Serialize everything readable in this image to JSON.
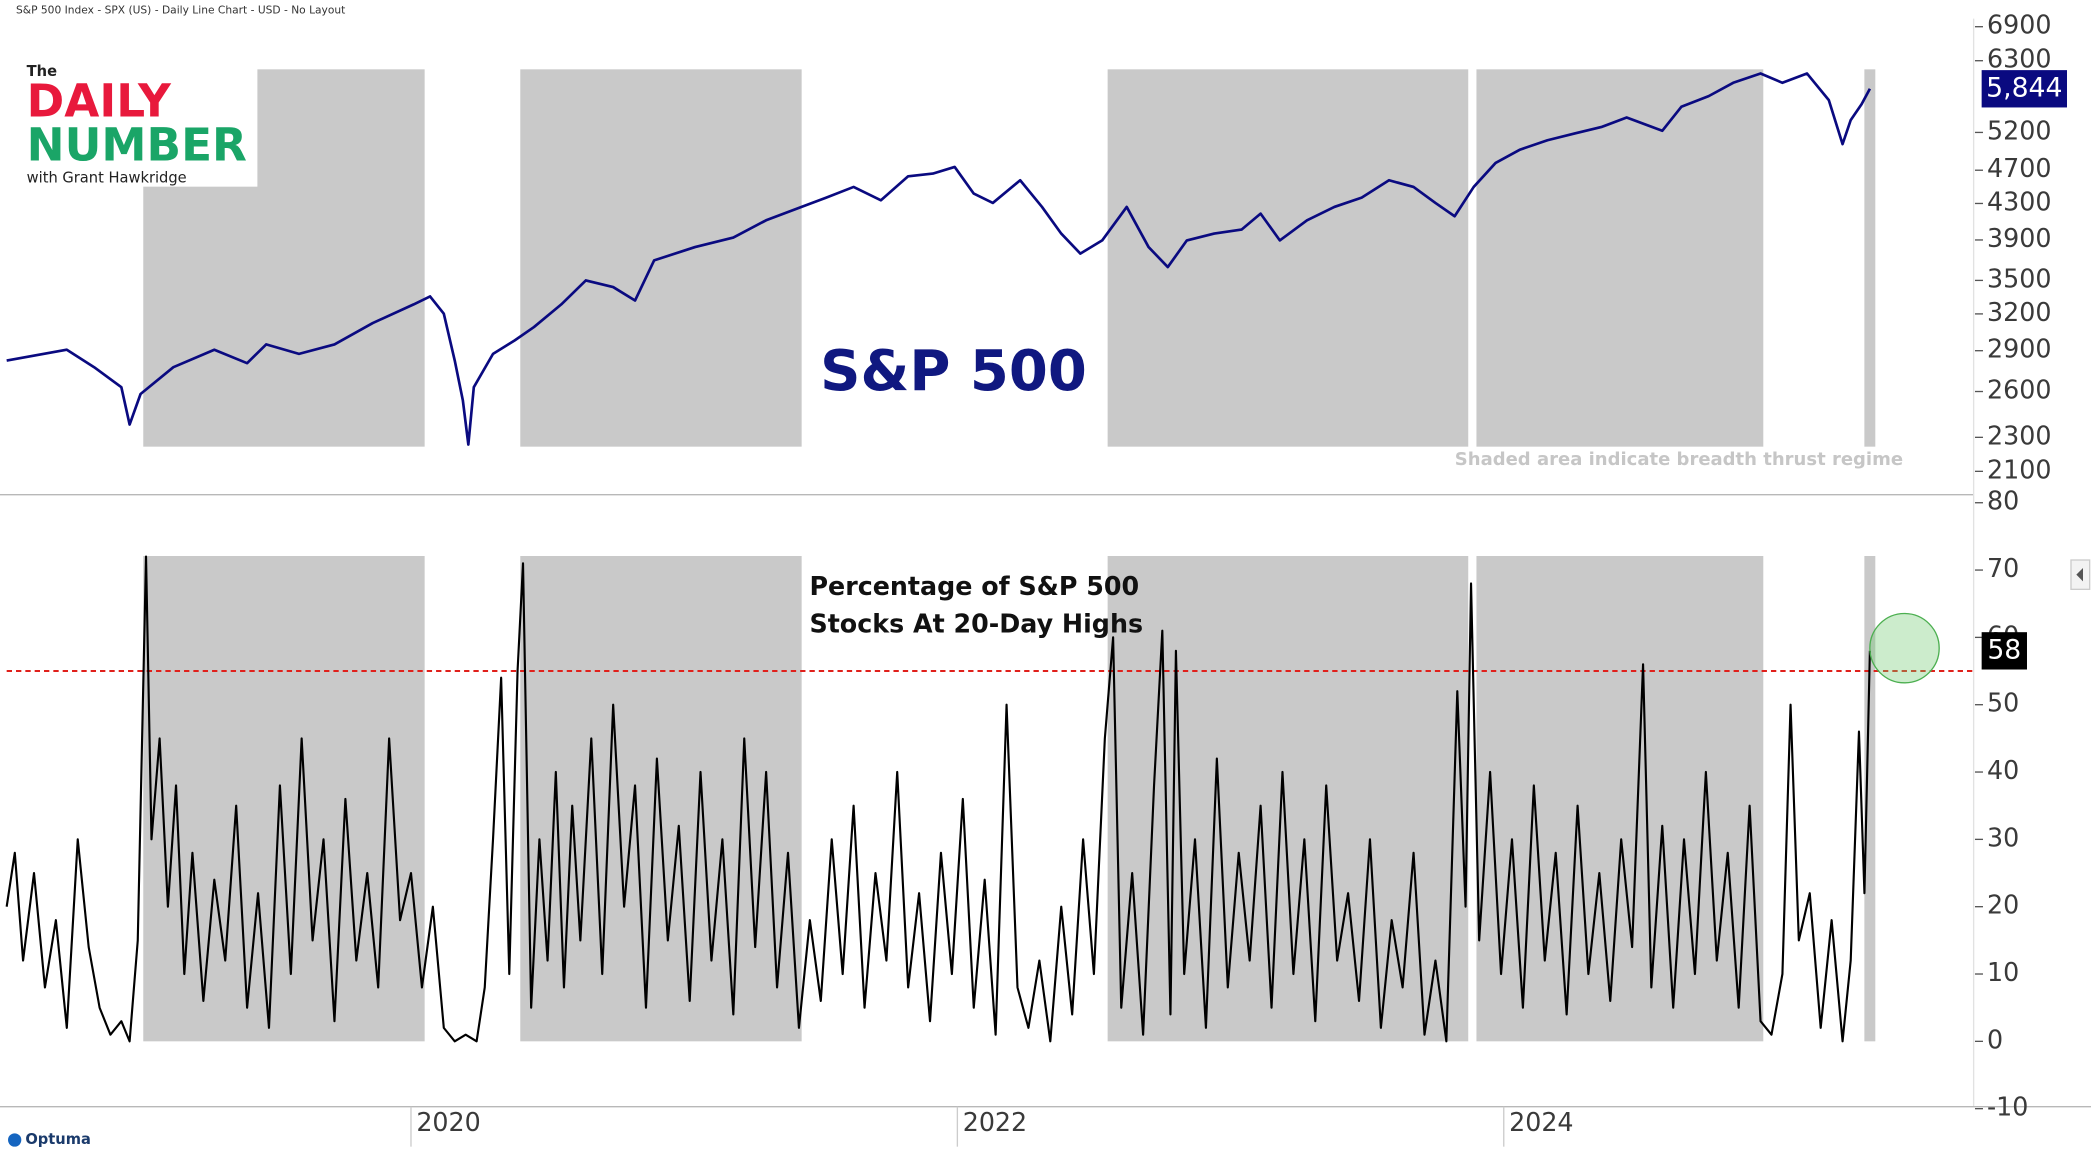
{
  "header": "S&P 500 Index - SPX (US) - Daily Line Chart - USD - No Layout",
  "logo": {
    "the": "The",
    "line1": "DAILY",
    "line2": "NUMBER",
    "tagline": "with Grant Hawkridge"
  },
  "footer": "Optuma",
  "chart_data": [
    {
      "type": "line",
      "title": "S&P 500",
      "note": "Shaded area indicate breadth thrust regime",
      "log_scale": true,
      "color": "#0a0a80",
      "shade_color": "#c9c9c9",
      "xlim": [
        2018.52,
        2025.72
      ],
      "ylim": [
        1980,
        7050
      ],
      "yticks": [
        2100,
        2300,
        2600,
        2900,
        3200,
        3500,
        3900,
        4300,
        4700,
        5200,
        6300,
        6900
      ],
      "shaded_regions": [
        [
          2019.02,
          2020.05
        ],
        [
          2020.4,
          2021.43
        ],
        [
          2022.55,
          2023.87
        ],
        [
          2023.9,
          2024.95
        ],
        [
          2025.32,
          2025.36
        ]
      ],
      "x": [
        2018.52,
        2018.74,
        2018.84,
        2018.94,
        2018.97,
        2019.01,
        2019.13,
        2019.28,
        2019.4,
        2019.47,
        2019.59,
        2019.72,
        2019.86,
        2020.01,
        2020.07,
        2020.12,
        2020.16,
        2020.19,
        2020.21,
        2020.23,
        2020.3,
        2020.38,
        2020.45,
        2020.55,
        2020.64,
        2020.74,
        2020.82,
        2020.89,
        2021.04,
        2021.18,
        2021.3,
        2021.43,
        2021.52,
        2021.62,
        2021.72,
        2021.82,
        2021.91,
        2021.99,
        2022.06,
        2022.13,
        2022.23,
        2022.31,
        2022.38,
        2022.45,
        2022.53,
        2022.62,
        2022.7,
        2022.77,
        2022.84,
        2022.94,
        2023.04,
        2023.11,
        2023.18,
        2023.28,
        2023.38,
        2023.48,
        2023.58,
        2023.67,
        2023.75,
        2023.82,
        2023.89,
        2023.97,
        2024.06,
        2024.16,
        2024.26,
        2024.36,
        2024.45,
        2024.58,
        2024.65,
        2024.75,
        2024.84,
        2024.94,
        2025.02,
        2025.11,
        2025.19,
        2025.24,
        2025.27,
        2025.31,
        2025.34
      ],
      "values": [
        2825,
        2907,
        2775,
        2630,
        2380,
        2583,
        2775,
        2907,
        2805,
        2949,
        2876,
        2949,
        3122,
        3282,
        3353,
        3201,
        2825,
        2538,
        2256,
        2630,
        2876,
        2981,
        3089,
        3282,
        3500,
        3438,
        3317,
        3693,
        3827,
        3924,
        4111,
        4260,
        4368,
        4495,
        4337,
        4625,
        4658,
        4742,
        4415,
        4306,
        4575,
        4260,
        3967,
        3760,
        3896,
        4260,
        3827,
        3627,
        3896,
        3967,
        4010,
        4185,
        3896,
        4111,
        4260,
        4368,
        4575,
        4495,
        4306,
        4155,
        4495,
        4793,
        4967,
        5093,
        5185,
        5279,
        5412,
        5222,
        5569,
        5730,
        5939,
        6089,
        5939,
        6089,
        5669,
        5039,
        5374,
        5609,
        5844
      ],
      "last_value_label": "5,844"
    },
    {
      "type": "line",
      "title_lines": [
        "Percentage of S&P 500",
        "Stocks At 20-Day Highs"
      ],
      "color": "#000000",
      "shade_color": "#c9c9c9",
      "threshold": 55,
      "threshold_color": "#e0201b",
      "xlim": [
        2018.52,
        2025.72
      ],
      "xticks": [
        2020,
        2022,
        2024
      ],
      "ylim": [
        -10,
        81
      ],
      "yticks": [
        -10,
        0,
        10,
        20,
        30,
        40,
        50,
        60,
        70,
        80
      ],
      "shaded_regions": [
        [
          2019.02,
          2020.05
        ],
        [
          2020.4,
          2021.43
        ],
        [
          2022.55,
          2023.87
        ],
        [
          2023.9,
          2024.95
        ],
        [
          2025.32,
          2025.36
        ]
      ],
      "x": [
        2018.52,
        2018.55,
        2018.58,
        2018.62,
        2018.66,
        2018.7,
        2018.74,
        2018.78,
        2018.82,
        2018.86,
        2018.9,
        2018.94,
        2018.97,
        2019.0,
        2019.03,
        2019.05,
        2019.08,
        2019.11,
        2019.14,
        2019.17,
        2019.2,
        2019.24,
        2019.28,
        2019.32,
        2019.36,
        2019.4,
        2019.44,
        2019.48,
        2019.52,
        2019.56,
        2019.6,
        2019.64,
        2019.68,
        2019.72,
        2019.76,
        2019.8,
        2019.84,
        2019.88,
        2019.92,
        2019.96,
        2020.0,
        2020.04,
        2020.08,
        2020.12,
        2020.16,
        2020.2,
        2020.24,
        2020.27,
        2020.3,
        2020.33,
        2020.36,
        2020.39,
        2020.41,
        2020.44,
        2020.47,
        2020.5,
        2020.53,
        2020.56,
        2020.59,
        2020.62,
        2020.66,
        2020.7,
        2020.74,
        2020.78,
        2020.82,
        2020.86,
        2020.9,
        2020.94,
        2020.98,
        2021.02,
        2021.06,
        2021.1,
        2021.14,
        2021.18,
        2021.22,
        2021.26,
        2021.3,
        2021.34,
        2021.38,
        2021.42,
        2021.46,
        2021.5,
        2021.54,
        2021.58,
        2021.62,
        2021.66,
        2021.7,
        2021.74,
        2021.78,
        2021.82,
        2021.86,
        2021.9,
        2021.94,
        2021.98,
        2022.02,
        2022.06,
        2022.1,
        2022.14,
        2022.18,
        2022.22,
        2022.26,
        2022.3,
        2022.34,
        2022.38,
        2022.42,
        2022.46,
        2022.5,
        2022.54,
        2022.57,
        2022.6,
        2022.64,
        2022.68,
        2022.72,
        2022.75,
        2022.78,
        2022.8,
        2022.83,
        2022.87,
        2022.91,
        2022.95,
        2022.99,
        2023.03,
        2023.07,
        2023.11,
        2023.15,
        2023.19,
        2023.23,
        2023.27,
        2023.31,
        2023.35,
        2023.39,
        2023.43,
        2023.47,
        2023.51,
        2023.55,
        2023.59,
        2023.63,
        2023.67,
        2023.71,
        2023.75,
        2023.79,
        2023.83,
        2023.86,
        2023.88,
        2023.91,
        2023.95,
        2023.99,
        2024.03,
        2024.07,
        2024.11,
        2024.15,
        2024.19,
        2024.23,
        2024.27,
        2024.31,
        2024.35,
        2024.39,
        2024.43,
        2024.47,
        2024.51,
        2024.54,
        2024.58,
        2024.62,
        2024.66,
        2024.7,
        2024.74,
        2024.78,
        2024.82,
        2024.86,
        2024.9,
        2024.94,
        2024.98,
        2025.02,
        2025.05,
        2025.08,
        2025.12,
        2025.16,
        2025.2,
        2025.24,
        2025.27,
        2025.3,
        2025.32,
        2025.34
      ],
      "values": [
        20,
        28,
        12,
        25,
        8,
        18,
        2,
        30,
        14,
        5,
        1,
        3,
        0,
        15,
        72,
        30,
        45,
        20,
        38,
        10,
        28,
        6,
        24,
        12,
        35,
        5,
        22,
        2,
        38,
        10,
        45,
        15,
        30,
        3,
        36,
        12,
        25,
        8,
        45,
        18,
        25,
        8,
        20,
        2,
        0,
        1,
        0,
        8,
        30,
        54,
        10,
        55,
        71,
        5,
        30,
        12,
        40,
        8,
        35,
        15,
        45,
        10,
        50,
        20,
        38,
        5,
        42,
        15,
        32,
        6,
        40,
        12,
        30,
        4,
        45,
        14,
        40,
        8,
        28,
        2,
        18,
        6,
        30,
        10,
        35,
        5,
        25,
        12,
        40,
        8,
        22,
        3,
        28,
        10,
        36,
        5,
        24,
        1,
        50,
        8,
        2,
        12,
        0,
        20,
        4,
        30,
        10,
        45,
        60,
        5,
        25,
        1,
        38,
        61,
        4,
        58,
        10,
        30,
        2,
        42,
        8,
        28,
        12,
        35,
        5,
        40,
        10,
        30,
        3,
        38,
        12,
        22,
        6,
        30,
        2,
        18,
        8,
        28,
        1,
        12,
        0,
        52,
        20,
        68,
        15,
        40,
        10,
        30,
        5,
        38,
        12,
        28,
        4,
        35,
        10,
        25,
        6,
        30,
        14,
        56,
        8,
        32,
        5,
        30,
        10,
        40,
        12,
        28,
        5,
        35,
        3,
        1,
        10,
        50,
        15,
        22,
        2,
        18,
        0,
        12,
        46,
        22,
        58
      ]
    }
  ]
}
